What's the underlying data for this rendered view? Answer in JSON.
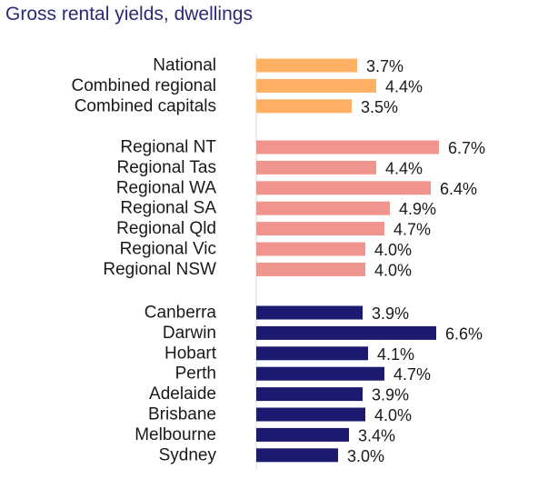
{
  "chart_data": {
    "type": "bar",
    "orientation": "horizontal",
    "title": "Gross rental yields, dwellings",
    "xlabel": "",
    "ylabel": "",
    "xlim": [
      0,
      8
    ],
    "grid": false,
    "legend": "none",
    "groups": [
      {
        "color": "#FFB062",
        "categories": [
          "National",
          "Combined regional",
          "Combined capitals"
        ],
        "values": [
          3.7,
          4.4,
          3.5
        ],
        "labels": [
          "3.7%",
          "4.4%",
          "3.5%"
        ]
      },
      {
        "color": "#F0948E",
        "categories": [
          "Regional NT",
          "Regional Tas",
          "Regional WA",
          "Regional SA",
          "Regional Qld",
          "Regional Vic",
          "Regional NSW"
        ],
        "values": [
          6.7,
          4.4,
          6.4,
          4.9,
          4.7,
          4.0,
          4.0
        ],
        "labels": [
          "6.7%",
          "4.4%",
          "6.4%",
          "4.9%",
          "4.7%",
          "4.0%",
          "4.0%"
        ]
      },
      {
        "color": "#1C1A6E",
        "categories": [
          "Canberra",
          "Darwin",
          "Hobart",
          "Perth",
          "Adelaide",
          "Brisbane",
          "Melbourne",
          "Sydney"
        ],
        "values": [
          3.9,
          6.6,
          4.1,
          4.7,
          3.9,
          4.0,
          3.4,
          3.0
        ],
        "labels": [
          "3.9%",
          "6.6%",
          "4.1%",
          "4.7%",
          "3.9%",
          "4.0%",
          "3.4%",
          "3.0%"
        ]
      }
    ]
  }
}
